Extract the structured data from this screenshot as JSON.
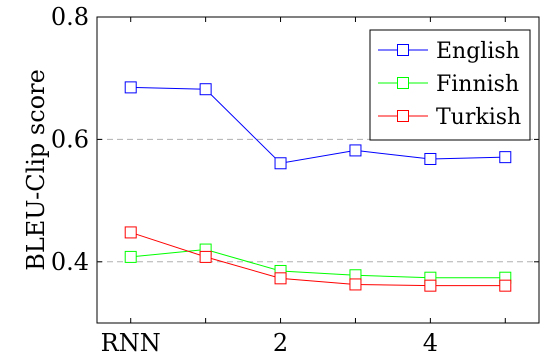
{
  "chart_data": {
    "type": "line",
    "title": "",
    "xlabel": "",
    "ylabel": "BLEU-Clip score",
    "x": [
      1,
      2,
      3,
      4,
      5,
      6
    ],
    "x_tick_values": [
      1,
      3,
      5
    ],
    "x_tick_labels": [
      "RNN",
      "2",
      "4"
    ],
    "xlim": [
      0.55,
      6.45
    ],
    "ylim": [
      0.3,
      0.8
    ],
    "y_ticks": [
      0.4,
      0.6,
      0.8
    ],
    "y_tick_labels": [
      "0.4",
      "0.6",
      "0.8"
    ],
    "grid": "horizontal dashed at 0.4 and 0.6",
    "legend_position": "top-right",
    "series": [
      {
        "name": "English",
        "color": "#0000ff",
        "marker": "open-square",
        "values": [
          0.685,
          0.682,
          0.561,
          0.582,
          0.568,
          0.571
        ]
      },
      {
        "name": "Finnish",
        "color": "#00ff00",
        "marker": "open-square",
        "values": [
          0.408,
          0.42,
          0.385,
          0.378,
          0.374,
          0.374
        ]
      },
      {
        "name": "Turkish",
        "color": "#ff0000",
        "marker": "open-square",
        "values": [
          0.448,
          0.408,
          0.373,
          0.363,
          0.361,
          0.361
        ]
      }
    ]
  }
}
